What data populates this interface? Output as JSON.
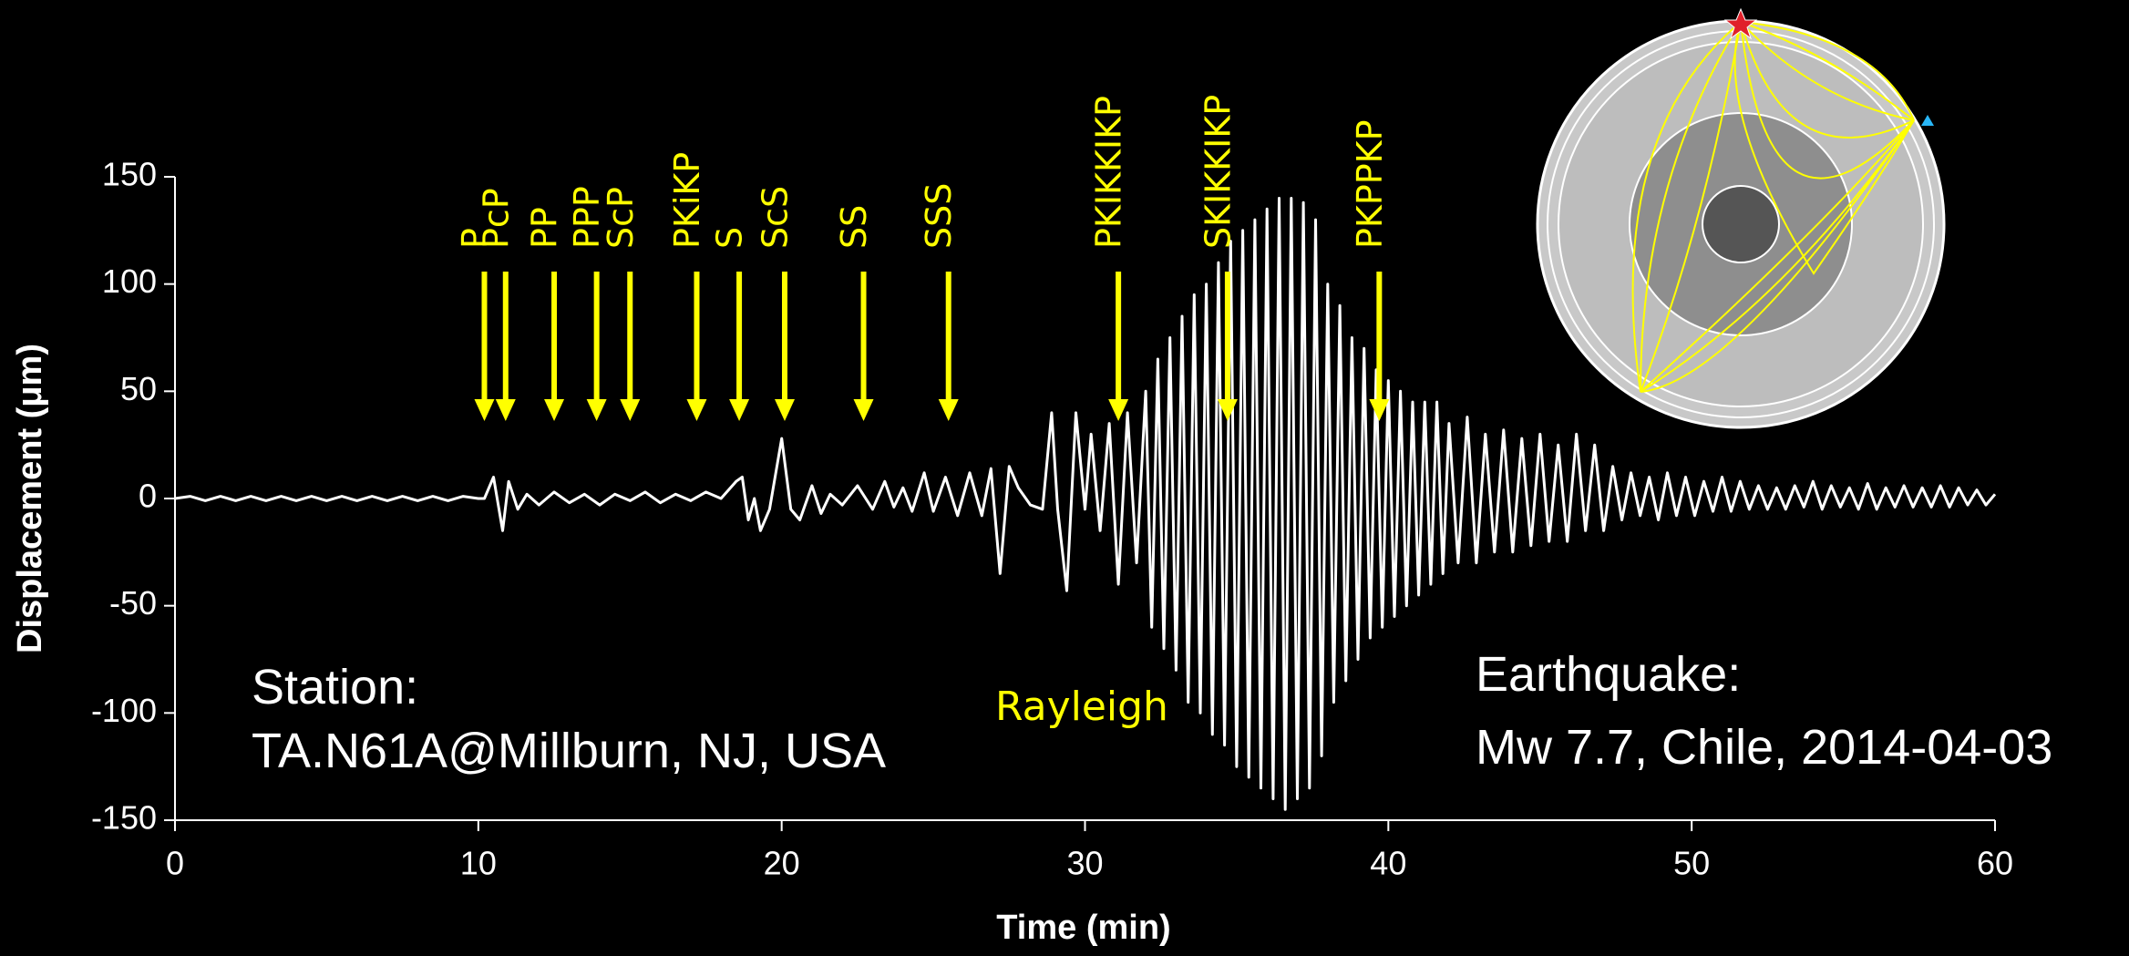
{
  "chart_data": {
    "type": "line",
    "x_label": "Time (min)",
    "y_label": "Displacement (μm)",
    "xlim": [
      0,
      60
    ],
    "xticks": [
      0,
      10,
      20,
      30,
      40,
      50,
      60
    ],
    "ylim": [
      -150,
      150
    ],
    "yticks": [
      -150,
      -100,
      -50,
      0,
      50,
      100,
      150
    ],
    "color": "#ffffff",
    "x": [
      0,
      0.5,
      1,
      1.5,
      2,
      2.5,
      3,
      3.5,
      4,
      4.5,
      5,
      5.5,
      6,
      6.5,
      7,
      7.5,
      8,
      8.5,
      9,
      9.5,
      10,
      10.2,
      10.5,
      10.8,
      11,
      11.3,
      11.6,
      12,
      12.5,
      13,
      13.5,
      14,
      14.5,
      15,
      15.5,
      16,
      16.5,
      17,
      17.5,
      18,
      18.5,
      18.7,
      18.9,
      19.1,
      19.3,
      19.6,
      20,
      20.3,
      20.6,
      21,
      21.3,
      21.6,
      22,
      22.5,
      23,
      23.4,
      23.7,
      24,
      24.3,
      24.7,
      25,
      25.4,
      25.8,
      26.2,
      26.6,
      26.9,
      27.2,
      27.5,
      27.8,
      28.2,
      28.6,
      28.9,
      29.1,
      29.4,
      29.7,
      30,
      30.2,
      30.5,
      30.8,
      31.1,
      31.4,
      31.7,
      32,
      32.2,
      32.4,
      32.6,
      32.8,
      33,
      33.2,
      33.4,
      33.6,
      33.8,
      34,
      34.2,
      34.4,
      34.6,
      34.8,
      35,
      35.2,
      35.4,
      35.6,
      35.8,
      36,
      36.2,
      36.4,
      36.6,
      36.8,
      37,
      37.2,
      37.4,
      37.6,
      37.8,
      38,
      38.2,
      38.4,
      38.6,
      38.8,
      39,
      39.2,
      39.4,
      39.6,
      39.8,
      40,
      40.2,
      40.4,
      40.6,
      40.8,
      41,
      41.2,
      41.4,
      41.6,
      41.8,
      42,
      42.3,
      42.6,
      42.9,
      43.2,
      43.5,
      43.8,
      44.1,
      44.4,
      44.7,
      45,
      45.3,
      45.6,
      45.9,
      46.2,
      46.5,
      46.8,
      47.1,
      47.4,
      47.7,
      48,
      48.3,
      48.6,
      48.9,
      49.2,
      49.5,
      49.8,
      50.1,
      50.4,
      50.7,
      51,
      51.3,
      51.6,
      51.9,
      52.2,
      52.5,
      52.8,
      53.1,
      53.4,
      53.7,
      54,
      54.3,
      54.6,
      54.9,
      55.2,
      55.5,
      55.8,
      56.1,
      56.4,
      56.7,
      57,
      57.3,
      57.6,
      57.9,
      58.2,
      58.5,
      58.8,
      59.1,
      59.4,
      59.7,
      60
    ],
    "values": [
      0,
      1,
      -1,
      1,
      -1,
      1,
      -1,
      1,
      -1,
      1,
      -1,
      1,
      -1,
      1,
      -1,
      1,
      -1,
      1,
      -1,
      1,
      0,
      0,
      10,
      -15,
      8,
      -5,
      2,
      -3,
      3,
      -2,
      2,
      -3,
      2,
      -1,
      3,
      -2,
      2,
      -1,
      3,
      0,
      8,
      10,
      -10,
      0,
      -15,
      -5,
      28,
      -5,
      -10,
      6,
      -7,
      2,
      -3,
      6,
      -5,
      8,
      -4,
      5,
      -6,
      12,
      -6,
      10,
      -8,
      12,
      -8,
      14,
      -35,
      15,
      5,
      -3,
      -5,
      40,
      -5,
      -43,
      40,
      -5,
      30,
      -15,
      35,
      -40,
      40,
      -30,
      50,
      -60,
      65,
      -70,
      75,
      -80,
      85,
      -95,
      95,
      -100,
      100,
      -110,
      110,
      -115,
      120,
      -125,
      125,
      -130,
      130,
      -135,
      135,
      -140,
      140,
      -145,
      140,
      -140,
      138,
      -135,
      130,
      -120,
      100,
      -95,
      90,
      -85,
      75,
      -75,
      70,
      -65,
      60,
      -60,
      55,
      -55,
      50,
      -50,
      45,
      -45,
      45,
      -40,
      45,
      -35,
      35,
      -30,
      38,
      -30,
      30,
      -25,
      32,
      -25,
      28,
      -22,
      30,
      -20,
      25,
      -20,
      30,
      -15,
      25,
      -15,
      15,
      -10,
      12,
      -8,
      10,
      -10,
      12,
      -8,
      10,
      -8,
      8,
      -6,
      10,
      -6,
      8,
      -5,
      6,
      -5,
      5,
      -5,
      6,
      -4,
      8,
      -5,
      6,
      -4,
      5,
      -5,
      7,
      -5,
      5,
      -4,
      6,
      -4,
      5,
      -4,
      6,
      -4,
      5,
      -3,
      4,
      -3,
      2
    ],
    "phases": [
      {
        "label": "P",
        "time": 10.2
      },
      {
        "label": "PcP",
        "time": 10.9
      },
      {
        "label": "PP",
        "time": 12.5
      },
      {
        "label": "PPP",
        "time": 13.9
      },
      {
        "label": "ScP",
        "time": 15.0
      },
      {
        "label": "PKiKP",
        "time": 17.2
      },
      {
        "label": "S",
        "time": 18.6
      },
      {
        "label": "ScS",
        "time": 20.1
      },
      {
        "label": "SS",
        "time": 22.7
      },
      {
        "label": "SSS",
        "time": 25.5
      },
      {
        "label": "PKIKKIKP",
        "time": 31.1
      },
      {
        "label": "SKIKKIKP",
        "time": 34.7
      },
      {
        "label": "PKPPKP",
        "time": 39.7
      }
    ],
    "phase_color": "#ffff00",
    "wave_label": "Rayleigh",
    "station": [
      "Station:",
      "TA.N61A@Millburn, NJ, USA"
    ],
    "earthquake": [
      "Earthquake:",
      "Mw 7.7, Chile, 2014-04-03"
    ]
  }
}
